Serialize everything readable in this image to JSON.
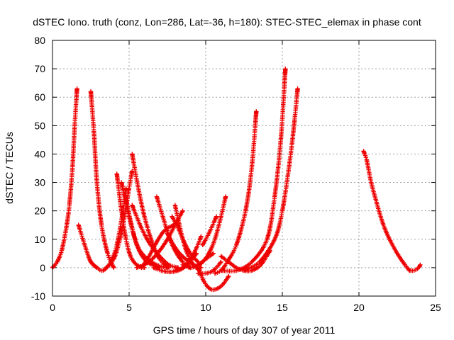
{
  "chart_data": {
    "type": "scatter",
    "title": "dSTEC Iono. truth (conz, Lon=286, Lat=-36, h=180): STEC-STEC_elemax in phase cont",
    "xlabel": "GPS time / hours of day 307 of year 2011",
    "ylabel": "dSTEC  / TECUs",
    "xlim": [
      0,
      25
    ],
    "ylim": [
      -10,
      80
    ],
    "xticks": [
      0,
      5,
      10,
      15,
      20,
      25
    ],
    "yticks": [
      -10,
      0,
      10,
      20,
      30,
      40,
      50,
      60,
      70,
      80
    ],
    "grid": true,
    "marker": "+",
    "color": "#ee0000",
    "series": [
      {
        "x": [
          0.0,
          0.3,
          0.6,
          0.9,
          1.1,
          1.3,
          1.45,
          1.6
        ],
        "y": [
          0,
          2,
          6,
          14,
          22,
          35,
          50,
          63
        ]
      },
      {
        "x": [
          1.7,
          2.1,
          2.5,
          2.9
        ],
        "y": [
          15,
          8,
          2,
          0
        ]
      },
      {
        "x": [
          2.5,
          2.7,
          2.9,
          3.2,
          3.6,
          4.0
        ],
        "y": [
          62,
          48,
          30,
          15,
          5,
          0
        ]
      },
      {
        "x": [
          2.5,
          2.9,
          3.3,
          3.8,
          4.2,
          4.6,
          4.8
        ],
        "y": [
          2,
          0,
          -1,
          2,
          8,
          20,
          28
        ]
      },
      {
        "x": [
          4.2,
          4.5,
          4.8,
          5.1,
          5.5,
          6.0
        ],
        "y": [
          33,
          20,
          10,
          4,
          1,
          0
        ]
      },
      {
        "x": [
          3.5,
          4.0,
          4.4,
          4.7,
          5.0,
          5.2
        ],
        "y": [
          0,
          3,
          10,
          18,
          28,
          34
        ]
      },
      {
        "x": [
          4.8,
          5.2,
          5.6,
          6.2,
          6.8,
          7.5
        ],
        "y": [
          24,
          14,
          7,
          3,
          1,
          0
        ]
      },
      {
        "x": [
          4.5,
          5.0,
          5.5,
          6.0,
          6.5,
          7.0
        ],
        "y": [
          30,
          18,
          8,
          3,
          1,
          0
        ]
      },
      {
        "x": [
          5.2,
          5.6,
          6.0,
          6.5,
          7.0,
          7.6
        ],
        "y": [
          40,
          28,
          18,
          9,
          3,
          0
        ]
      },
      {
        "x": [
          5.2,
          5.8,
          6.4,
          7.0,
          7.6,
          8.2
        ],
        "y": [
          22,
          14,
          8,
          4,
          1,
          0
        ]
      },
      {
        "x": [
          5.5,
          6.0,
          6.5,
          7.0,
          7.5,
          8.0,
          8.5
        ],
        "y": [
          0,
          1,
          3,
          6,
          10,
          15,
          20
        ]
      },
      {
        "x": [
          5.8,
          6.3,
          6.8,
          7.3,
          7.9
        ],
        "y": [
          0,
          4,
          9,
          13,
          15
        ]
      },
      {
        "x": [
          6.8,
          7.2,
          7.6,
          8.0,
          8.5,
          9.0
        ],
        "y": [
          25,
          18,
          11,
          6,
          2,
          0
        ]
      },
      {
        "x": [
          6.6,
          7.1,
          7.6,
          8.2,
          8.8,
          9.4
        ],
        "y": [
          0,
          -1,
          -1.5,
          -1,
          1,
          5
        ]
      },
      {
        "x": [
          7.5,
          7.9,
          8.3,
          8.7,
          9.2,
          9.7
        ],
        "y": [
          12,
          8,
          5,
          3,
          1,
          0
        ]
      },
      {
        "x": [
          7.8,
          8.2,
          8.6,
          9.0,
          9.5
        ],
        "y": [
          18,
          14,
          9,
          5,
          2
        ]
      },
      {
        "x": [
          8.0,
          8.2,
          8.5,
          8.8,
          9.2,
          9.6
        ],
        "y": [
          22,
          17,
          10,
          5,
          1,
          -1
        ]
      },
      {
        "x": [
          8.0,
          8.5,
          9.0,
          9.4,
          9.7
        ],
        "y": [
          -1,
          0,
          3,
          7,
          11
        ]
      },
      {
        "x": [
          8.5,
          9.0,
          9.5,
          10.0,
          10.5
        ],
        "y": [
          1,
          0,
          1,
          3,
          5
        ]
      },
      {
        "x": [
          9.4,
          9.8,
          10.2,
          10.6,
          11.0,
          11.3
        ],
        "y": [
          0,
          2,
          5,
          10,
          18,
          25
        ]
      },
      {
        "x": [
          9.5,
          10.0,
          10.5,
          11.0
        ],
        "y": [
          -2,
          -2,
          -1,
          2
        ]
      },
      {
        "x": [
          9.8,
          10.2,
          10.7
        ],
        "y": [
          8,
          12,
          18
        ]
      },
      {
        "x": [
          9.5,
          9.9,
          10.3,
          10.7,
          11.1,
          11.5
        ],
        "y": [
          0,
          -5,
          -7.5,
          -7.5,
          -6,
          -3
        ]
      },
      {
        "x": [
          10.6,
          11.0,
          11.4,
          12.0,
          12.6,
          13.0,
          13.3
        ],
        "y": [
          -2,
          -1,
          2,
          8,
          20,
          35,
          55
        ]
      },
      {
        "x": [
          11.0,
          11.5,
          12.0,
          12.5,
          13.0,
          13.6,
          14.2
        ],
        "y": [
          4,
          2,
          0,
          -1,
          -1,
          1,
          6
        ]
      },
      {
        "x": [
          11.0,
          12.0,
          13.0,
          14.0,
          14.5,
          14.9,
          15.2
        ],
        "y": [
          -1,
          -1,
          2,
          10,
          25,
          45,
          70
        ]
      },
      {
        "x": [
          12.5,
          13.5,
          14.5,
          15.0,
          15.5,
          15.8,
          16.0
        ],
        "y": [
          -1,
          2,
          10,
          20,
          38,
          52,
          63
        ]
      },
      {
        "x": [
          20.3,
          20.5,
          20.8,
          21.2,
          21.6,
          22.0,
          22.5,
          23.0,
          23.3
        ],
        "y": [
          41,
          38,
          30,
          22,
          15,
          10,
          5,
          1,
          -1
        ]
      },
      {
        "x": [
          23.3,
          23.6,
          23.9,
          24.0
        ],
        "y": [
          -1,
          -1,
          0,
          1
        ]
      }
    ]
  }
}
